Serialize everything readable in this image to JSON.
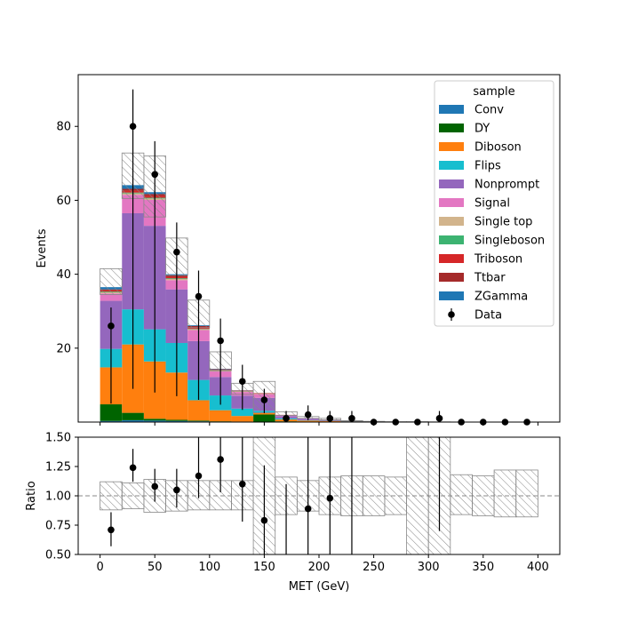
{
  "chart_data": {
    "type": "bar",
    "stacked": true,
    "xlabel": "MET (GeV)",
    "bin_edges": [
      0,
      20,
      40,
      60,
      80,
      100,
      120,
      140,
      160,
      180,
      200,
      220,
      240,
      260,
      280,
      300,
      320,
      340,
      360,
      380,
      400
    ],
    "main": {
      "ylabel": "Events",
      "yticks": [
        20,
        40,
        60,
        80
      ],
      "ylim": [
        0,
        94
      ],
      "series": [
        {
          "name": "Conv",
          "color": "#1f77b4",
          "values": [
            0.3,
            0.5,
            0.4,
            0.3,
            0.2,
            0.1,
            0.05,
            0.05,
            0,
            0,
            0,
            0,
            0,
            0,
            0,
            0,
            0,
            0,
            0,
            0
          ]
        },
        {
          "name": "DY",
          "color": "#006400",
          "values": [
            4.5,
            2.0,
            0.5,
            0.3,
            0.2,
            0.1,
            0.1,
            2.0,
            0.2,
            0.1,
            0,
            0,
            0,
            0,
            0,
            0,
            0,
            0,
            0,
            0
          ]
        },
        {
          "name": "Diboson",
          "color": "#ff7f0e",
          "values": [
            10.0,
            18.5,
            15.5,
            12.8,
            5.5,
            3.0,
            1.5,
            0.5,
            0.5,
            0.3,
            0.3,
            0.1,
            0.05,
            0,
            0,
            0,
            0,
            0,
            0,
            0
          ]
        },
        {
          "name": "Flips",
          "color": "#17becf",
          "values": [
            5.0,
            9.5,
            8.7,
            8.0,
            5.5,
            4.0,
            2.0,
            0.5,
            0.3,
            0.1,
            0.05,
            0,
            0,
            0,
            0,
            0,
            0,
            0,
            0,
            0
          ]
        },
        {
          "name": "Nonprompt",
          "color": "#9467bd",
          "values": [
            13.0,
            26.0,
            28.0,
            14.5,
            10.5,
            5.0,
            3.5,
            3.5,
            0.6,
            0.4,
            0.2,
            0.1,
            0.05,
            0,
            0,
            0,
            0,
            0,
            0,
            0
          ]
        },
        {
          "name": "Signal",
          "color": "#e377c2",
          "values": [
            2.0,
            5.0,
            7.0,
            2.5,
            3.0,
            1.5,
            1.0,
            1.0,
            0.3,
            0.2,
            0.1,
            0,
            0,
            0,
            0,
            0,
            0,
            0,
            0,
            0
          ]
        },
        {
          "name": "Single top",
          "color": "#d2b48c",
          "values": [
            0.3,
            0.4,
            0.4,
            0.3,
            0.2,
            0.1,
            0.1,
            0.1,
            0,
            0,
            0,
            0,
            0,
            0,
            0,
            0,
            0,
            0,
            0,
            0
          ]
        },
        {
          "name": "Singleboson",
          "color": "#3cb371",
          "values": [
            0.2,
            0.2,
            0.2,
            0.2,
            0.1,
            0.1,
            0.1,
            0,
            0,
            0,
            0,
            0,
            0,
            0,
            0,
            0,
            0,
            0,
            0,
            0
          ]
        },
        {
          "name": "Triboson",
          "color": "#d62728",
          "values": [
            0.3,
            0.5,
            0.5,
            0.4,
            0.5,
            0.2,
            0.1,
            0.1,
            0.05,
            0,
            0,
            0,
            0,
            0,
            0,
            0,
            0,
            0,
            0,
            0
          ]
        },
        {
          "name": "Ttbar",
          "color": "#a52a2a",
          "values": [
            0.3,
            0.5,
            0.5,
            0.4,
            0.3,
            0.2,
            0.1,
            0.1,
            0,
            0,
            0,
            0,
            0,
            0,
            0,
            0,
            0,
            0,
            0,
            0
          ]
        },
        {
          "name": "ZGamma",
          "color": "#1f77b4",
          "values": [
            0.6,
            1.0,
            0.5,
            0.3,
            0.2,
            0.1,
            0.05,
            0,
            0,
            0,
            0,
            0,
            0,
            0,
            0,
            0,
            0,
            0,
            0,
            0
          ]
        }
      ],
      "mc_unc": [
        [
          34.5,
          41.5
        ],
        [
          60.5,
          72.8
        ],
        [
          55.5,
          72.0
        ],
        [
          39.7,
          49.8
        ],
        [
          25.5,
          33.0
        ],
        [
          14.0,
          19.0
        ],
        [
          7.5,
          10.5
        ],
        [
          2.5,
          11.0
        ],
        [
          1.8,
          2.8
        ],
        [
          1.0,
          1.5
        ],
        [
          0.6,
          1.0
        ],
        [
          0.2,
          0.4
        ],
        [
          0.1,
          0.2
        ],
        [
          0.0,
          0.1
        ],
        [
          0.0,
          0.1
        ],
        [
          0.0,
          0.05
        ],
        [
          0,
          0
        ],
        [
          0,
          0
        ],
        [
          0,
          0
        ],
        [
          0,
          0
        ]
      ],
      "data": {
        "name": "Data",
        "x": [
          10,
          30,
          50,
          70,
          90,
          110,
          130,
          150,
          170,
          190,
          210,
          230,
          250,
          270,
          290,
          310,
          330,
          350,
          370,
          390
        ],
        "y": [
          26,
          80,
          67,
          46,
          34,
          22,
          11,
          6,
          1,
          2,
          1,
          1,
          0,
          0,
          0,
          1,
          0,
          0,
          0,
          0
        ],
        "yerr": [
          [
            5,
            31
          ],
          [
            9,
            90
          ],
          [
            8,
            76
          ],
          [
            7,
            54
          ],
          [
            6,
            41
          ],
          [
            4.7,
            28
          ],
          [
            3.3,
            15.5
          ],
          [
            2.4,
            9
          ],
          [
            0,
            3
          ],
          [
            0.5,
            4.5
          ],
          [
            0,
            3
          ],
          [
            0,
            3
          ],
          [
            0,
            0
          ],
          [
            0,
            0
          ],
          [
            0,
            0
          ],
          [
            0,
            3
          ],
          [
            0,
            0
          ],
          [
            0,
            0
          ],
          [
            0,
            0
          ],
          [
            0,
            0
          ]
        ]
      }
    },
    "legend": {
      "title": "sample",
      "location": "upper right",
      "entries": [
        "Conv",
        "DY",
        "Diboson",
        "Flips",
        "Nonprompt",
        "Signal",
        "Single top",
        "Singleboson",
        "Triboson",
        "Ttbar",
        "ZGamma",
        "Data"
      ]
    },
    "ratio": {
      "ylabel": "Ratio",
      "ylim": [
        0.5,
        1.5
      ],
      "yticks": [
        "0.50",
        "0.75",
        "1.00",
        "1.25",
        "1.50"
      ],
      "reference_line": 1.0,
      "unc_band": [
        [
          0.88,
          1.12
        ],
        [
          0.89,
          1.11
        ],
        [
          0.86,
          1.14
        ],
        [
          0.87,
          1.13
        ],
        [
          0.88,
          1.13
        ],
        [
          0.88,
          1.13
        ],
        [
          0.88,
          1.13
        ],
        [
          0.5,
          1.5
        ],
        [
          0.84,
          1.16
        ],
        [
          0.87,
          1.13
        ],
        [
          0.84,
          1.16
        ],
        [
          0.83,
          1.17
        ],
        [
          0.83,
          1.17
        ],
        [
          0.84,
          1.16
        ],
        [
          0.3,
          1.5
        ],
        [
          0.5,
          1.5
        ],
        [
          0.84,
          1.18
        ],
        [
          0.83,
          1.17
        ],
        [
          0.82,
          1.22
        ],
        [
          0.82,
          1.22
        ]
      ],
      "points": [
        {
          "x": 10,
          "y": 0.71,
          "lo": 0.57,
          "hi": 0.86
        },
        {
          "x": 30,
          "y": 1.24,
          "lo": 1.12,
          "hi": 1.4
        },
        {
          "x": 50,
          "y": 1.08,
          "lo": 0.95,
          "hi": 1.23
        },
        {
          "x": 70,
          "y": 1.05,
          "lo": 0.9,
          "hi": 1.23
        },
        {
          "x": 90,
          "y": 1.17,
          "lo": 0.98,
          "hi": 1.5
        },
        {
          "x": 110,
          "y": 1.31,
          "lo": 1.03,
          "hi": 1.5
        },
        {
          "x": 130,
          "y": 1.1,
          "lo": 0.78,
          "hi": 1.5
        },
        {
          "x": 150,
          "y": 0.79,
          "lo": 0.45,
          "hi": 1.26
        },
        {
          "x": 170,
          "y": null,
          "lo": 0.45,
          "hi": 1.1
        },
        {
          "x": 190,
          "y": 0.89,
          "lo": 0.45,
          "hi": 1.5
        },
        {
          "x": 210,
          "y": 0.98,
          "lo": 0.45,
          "hi": 1.5
        },
        {
          "x": 230,
          "y": null,
          "lo": 0.45,
          "hi": 1.5
        },
        {
          "x": 310,
          "y": null,
          "lo": 0.7,
          "hi": 1.5
        }
      ]
    },
    "xticks": [
      0,
      50,
      100,
      150,
      200,
      250,
      300,
      350,
      400
    ],
    "xlim": [
      -20,
      420
    ]
  }
}
